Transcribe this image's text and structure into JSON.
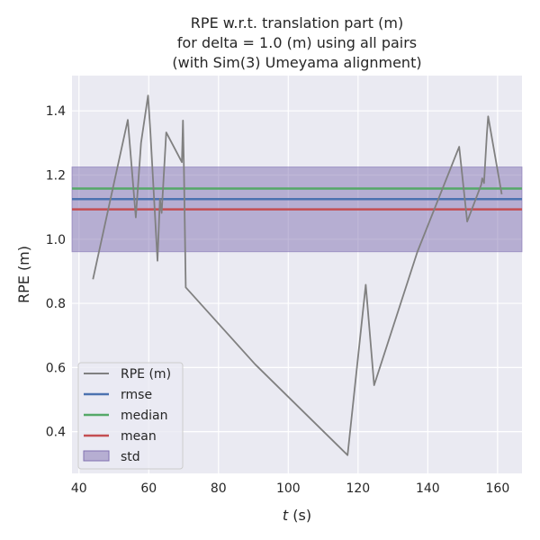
{
  "chart_data": {
    "type": "line",
    "title": [
      "RPE w.r.t. translation part (m)",
      "for delta = 1.0 (m) using all pairs",
      "(with Sim(3) Umeyama alignment)"
    ],
    "xlabel_italic": "t",
    "xlabel_rest": " (s)",
    "ylabel": "RPE (m)",
    "xlim": [
      38,
      167
    ],
    "ylim": [
      0.27,
      1.51
    ],
    "x_ticks": [
      40,
      60,
      80,
      100,
      120,
      140,
      160
    ],
    "x_tick_labels": [
      "40",
      "60",
      "80",
      "100",
      "120",
      "140",
      "160"
    ],
    "y_ticks": [
      0.4,
      0.6,
      0.8,
      1.0,
      1.2,
      1.4
    ],
    "y_tick_labels": [
      "0.4",
      "0.6",
      "0.8",
      "1.0",
      "1.2",
      "1.4"
    ],
    "grid": true,
    "legend_position": "lower-left",
    "series": [
      {
        "name": "RPE (m)",
        "color": "#808080",
        "x": [
          44.0,
          54.0,
          56.3,
          57.8,
          59.8,
          60.5,
          62.5,
          63.2,
          63.7,
          65.0,
          69.5,
          69.8,
          70.1,
          70.6,
          90.5,
          117.0,
          122.2,
          124.6,
          137.0,
          149.0,
          151.3,
          155.3,
          155.6,
          156.1,
          156.9,
          157.3,
          161.2
        ],
        "y": [
          0.875,
          1.372,
          1.068,
          1.3,
          1.448,
          1.33,
          0.933,
          1.126,
          1.082,
          1.333,
          1.24,
          1.37,
          1.215,
          0.85,
          0.61,
          0.327,
          0.858,
          0.545,
          0.96,
          1.288,
          1.055,
          1.17,
          1.19,
          1.175,
          1.325,
          1.383,
          1.14
        ]
      }
    ],
    "stats": [
      {
        "name": "rmse",
        "value": 1.125,
        "color": "#4c72b0"
      },
      {
        "name": "median",
        "value": 1.158,
        "color": "#55a868"
      },
      {
        "name": "mean",
        "value": 1.093,
        "color": "#c44e52"
      }
    ],
    "std_band": {
      "name": "std",
      "lower": 0.961,
      "upper": 1.225,
      "color": "#8172b2"
    },
    "legend": [
      "RPE (m)",
      "rmse",
      "median",
      "mean",
      "std"
    ]
  }
}
